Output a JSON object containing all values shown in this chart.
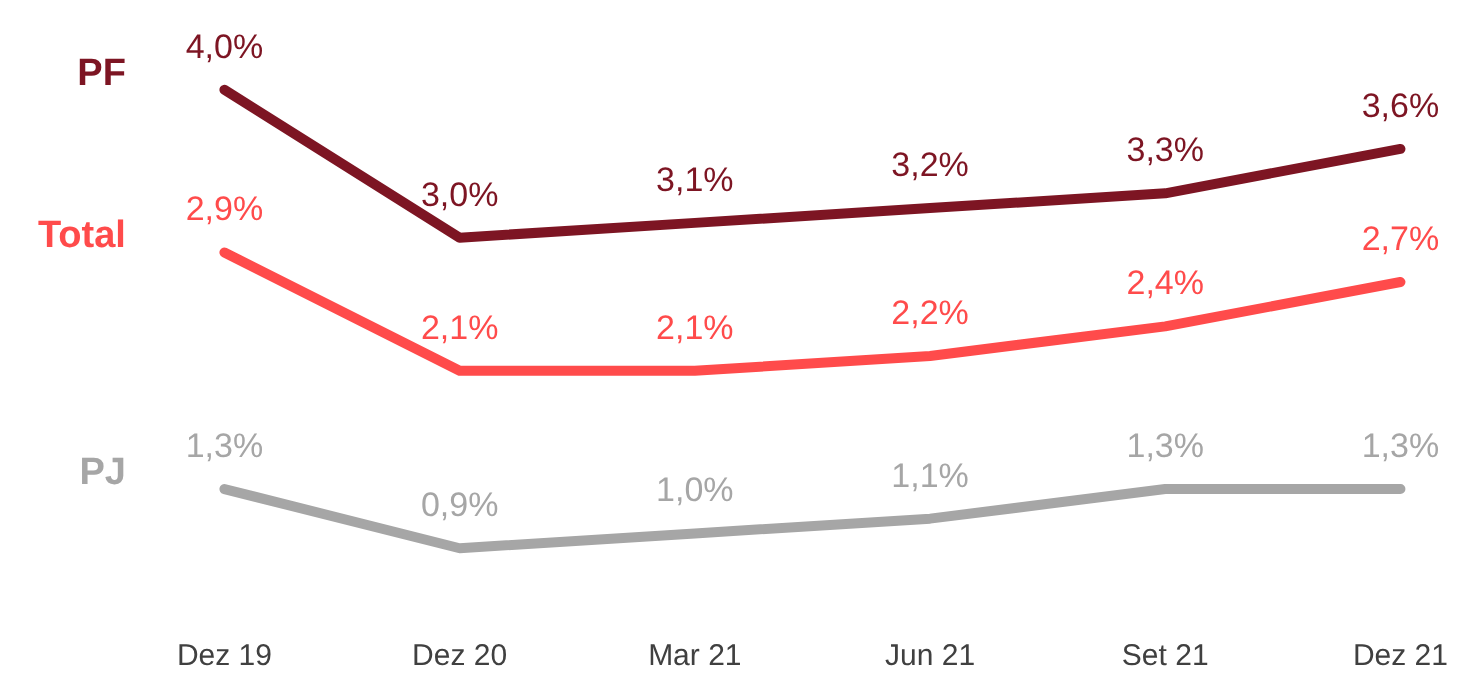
{
  "chart_data": {
    "type": "line",
    "categories": [
      "Dez 19",
      "Dez 20",
      "Mar 21",
      "Jun 21",
      "Set 21",
      "Dez 21"
    ],
    "series": [
      {
        "name": "PF",
        "color": "#7d1523",
        "values": [
          4.0,
          3.0,
          3.1,
          3.2,
          3.3,
          3.6
        ],
        "value_labels": [
          "4,0%",
          "3,0%",
          "3,1%",
          "3,2%",
          "3,3%",
          "3,6%"
        ]
      },
      {
        "name": "Total",
        "color": "#ff4b4b",
        "values": [
          2.9,
          2.1,
          2.1,
          2.2,
          2.4,
          2.7
        ],
        "value_labels": [
          "2,9%",
          "2,1%",
          "2,1%",
          "2,2%",
          "2,4%",
          "2,7%"
        ]
      },
      {
        "name": "PJ",
        "color": "#a6a6a6",
        "values": [
          1.3,
          0.9,
          1.0,
          1.1,
          1.3,
          1.3
        ],
        "value_labels": [
          "1,3%",
          "0,9%",
          "1,0%",
          "1,1%",
          "1,3%",
          "1,3%"
        ]
      }
    ],
    "tick_labels": "x",
    "grid": false,
    "marker": "none",
    "line_style": "solid"
  }
}
